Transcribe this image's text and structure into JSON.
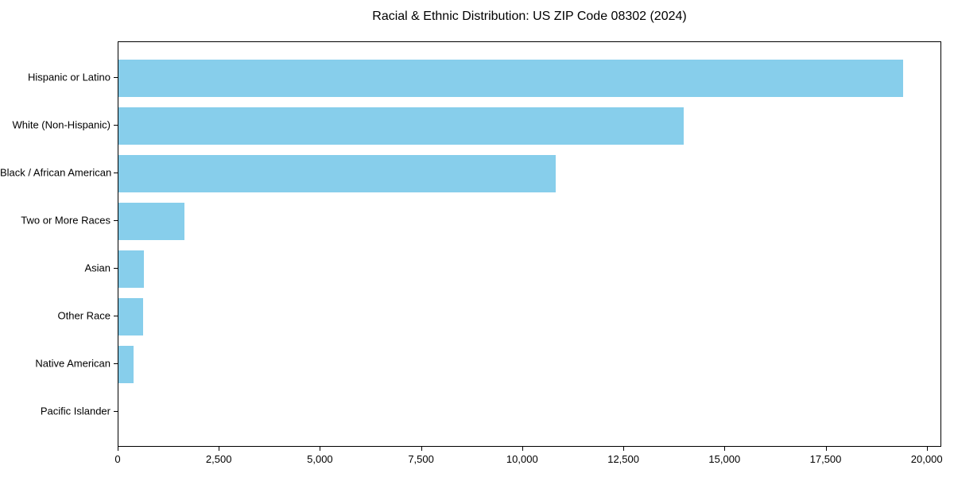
{
  "title": "Racial & Ethnic Distribution: US ZIP Code 08302 (2024)",
  "chart_data": {
    "type": "bar",
    "orientation": "horizontal",
    "title": "Racial & Ethnic Distribution: US ZIP Code 08302 (2024)",
    "xlabel": "",
    "ylabel": "",
    "categories": [
      "Hispanic or Latino",
      "White (Non-Hispanic)",
      "Black / African American",
      "Two or More Races",
      "Asian",
      "Other Race",
      "Native American",
      "Pacific Islander"
    ],
    "values": [
      19400,
      13970,
      10810,
      1630,
      630,
      610,
      380,
      0
    ],
    "xlim": [
      0,
      20360
    ],
    "x_ticks": [
      0,
      2500,
      5000,
      7500,
      10000,
      12500,
      15000,
      17500,
      20000
    ],
    "x_tick_labels": [
      "0",
      "2,500",
      "5,000",
      "7,500",
      "10,000",
      "12,500",
      "15,000",
      "17,500",
      "20,000"
    ],
    "bar_color": "#87CEEB",
    "grid": false,
    "legend": null,
    "background_color": "#FFFFFF",
    "spine_color": "#000000",
    "text_color": "#000000"
  }
}
